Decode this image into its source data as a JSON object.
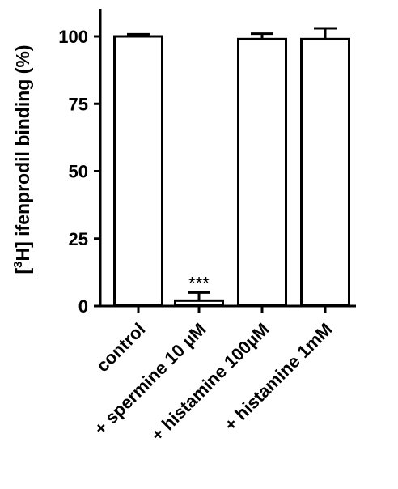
{
  "chart_data": {
    "type": "bar",
    "title": "",
    "xlabel": "",
    "ylabel_prefix": "[",
    "ylabel_sup": "3",
    "ylabel_rest": "H] ifenprodil binding (%)",
    "categories": [
      "control",
      "+ spermine 10 µM",
      "+ histamine 100µM",
      "+ histamine 1mM"
    ],
    "values": [
      100,
      2,
      99,
      99
    ],
    "error_upper": [
      0.8,
      3,
      2,
      4
    ],
    "annotations": [
      "",
      "***",
      "",
      ""
    ],
    "yticks": [
      0,
      25,
      50,
      75,
      100
    ],
    "ylim": [
      0,
      110
    ],
    "grid": false,
    "legend": "none",
    "bar_fill": "#ffffff",
    "bar_stroke": "#000000"
  }
}
